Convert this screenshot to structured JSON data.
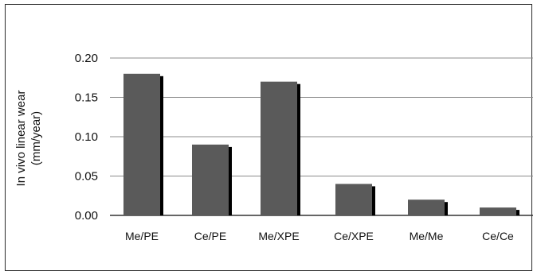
{
  "chart_data": {
    "type": "bar",
    "categories": [
      "Me/PE",
      "Ce/PE",
      "Me/XPE",
      "Ce/XPE",
      "Me/Me",
      "Ce/Ce"
    ],
    "values": [
      0.18,
      0.09,
      0.17,
      0.04,
      0.02,
      0.01
    ],
    "title": "",
    "xlabel": "",
    "ylabel_lines": [
      "In vivo linear wear",
      "(mm/year)"
    ],
    "ylim": [
      0,
      0.2
    ],
    "yticks": [
      "0.00",
      "0.05",
      "0.10",
      "0.15",
      "0.20"
    ],
    "grid": true,
    "legend": "none",
    "colors": {
      "bar": "#5a5a5a",
      "bar_shadow": "#000000",
      "grid": "#8c8c8c",
      "axis": "#333333"
    }
  }
}
